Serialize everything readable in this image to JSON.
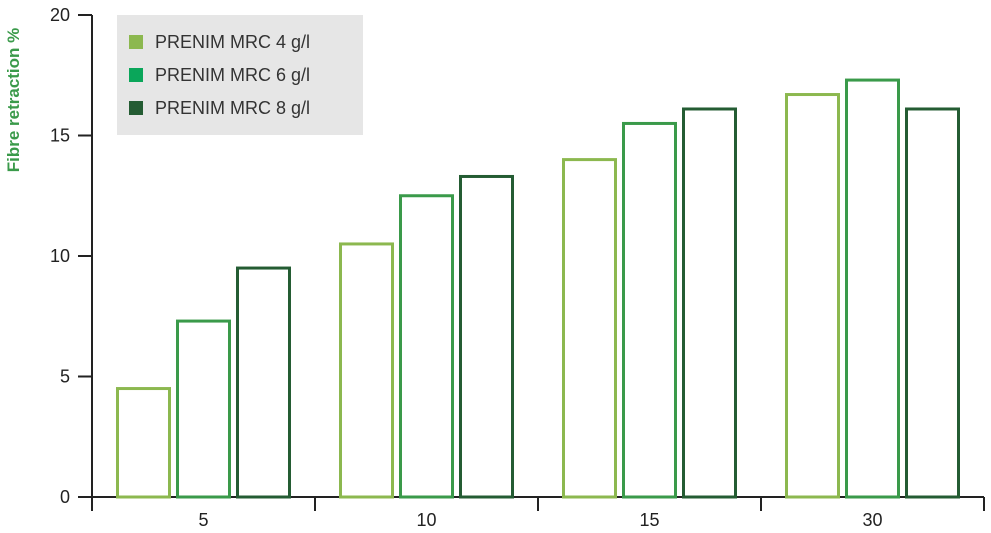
{
  "chart_data": {
    "type": "bar",
    "title": "",
    "xlabel": "",
    "ylabel": "Fibre retraction %",
    "categories": [
      "5",
      "10",
      "15",
      "30"
    ],
    "ylim": [
      0,
      20
    ],
    "yticks": [
      "0",
      "5",
      "10",
      "15",
      "20"
    ],
    "series": [
      {
        "name": "PRENIM MRC 4 g/l",
        "values": [
          4.5,
          10.5,
          14.0,
          16.7
        ],
        "color": "#8cb84f"
      },
      {
        "name": "PRENIM MRC 6 g/l",
        "values": [
          7.3,
          12.5,
          15.5,
          17.3
        ],
        "color": "#3a9a4a"
      },
      {
        "name": "PRENIM MRC 8 g/l",
        "values": [
          9.5,
          13.3,
          16.1,
          16.1
        ],
        "color": "#245c33"
      }
    ],
    "legend_position": "top-left",
    "grid": false
  },
  "legend_swatch_colors": [
    "#8cb84f",
    "#0aa65a",
    "#245c33"
  ]
}
